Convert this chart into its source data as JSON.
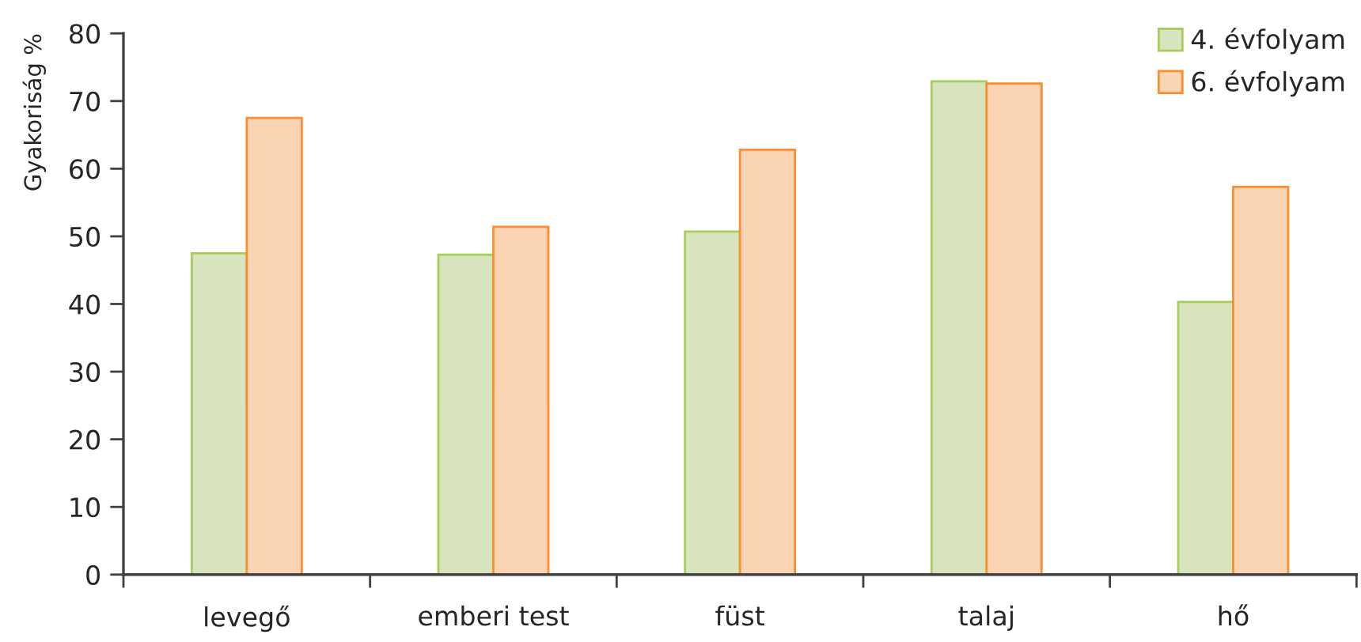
{
  "chart_data": {
    "type": "bar",
    "ylabel": "Gyakoriság %",
    "categories": [
      "levegő",
      "emberi test",
      "füst",
      "talaj",
      "hő"
    ],
    "series": [
      {
        "name": "4. évfolyam",
        "color": "#d7e4bd",
        "values": [
          47.5,
          47.3,
          50.7,
          72.9,
          40.3
        ]
      },
      {
        "name": "6. évfolyam",
        "color": "#fbd4b4",
        "values": [
          67.5,
          51.4,
          62.8,
          72.6,
          57.3
        ]
      }
    ],
    "ylim": [
      0,
      80
    ],
    "yticks": [
      0,
      10,
      20,
      30,
      40,
      50,
      60,
      70,
      80
    ],
    "grid": false,
    "legend": "top right"
  }
}
